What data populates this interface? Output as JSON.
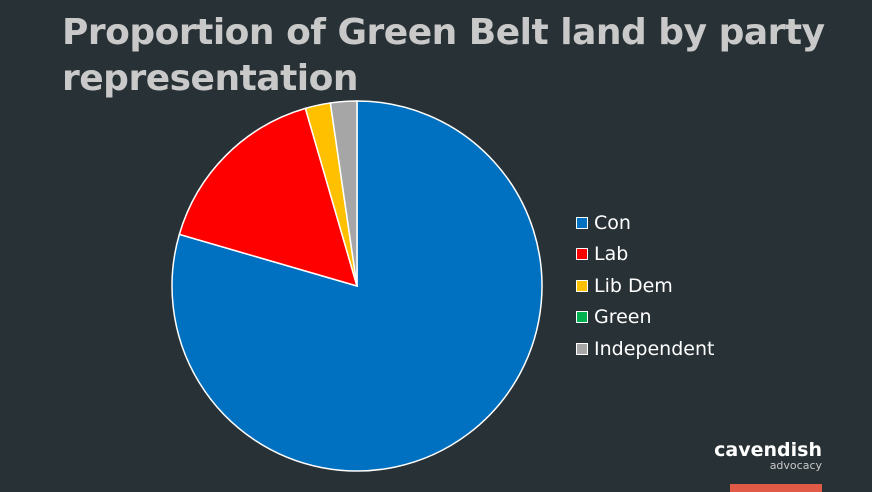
{
  "chart_data": {
    "type": "pie",
    "title": "Proportion of Green Belt land by party representation",
    "slices": [
      {
        "name": "Con",
        "value": 79.5,
        "color": "#0070c0"
      },
      {
        "name": "Lab",
        "value": 16.0,
        "color": "#ff0000"
      },
      {
        "name": "Lib Dem",
        "value": 2.2,
        "color": "#ffc000"
      },
      {
        "name": "Green",
        "value": 0.0,
        "color": "#00b050"
      },
      {
        "name": "Independent",
        "value": 2.3,
        "color": "#a6a6a6"
      }
    ],
    "legend_position": "right"
  },
  "brand": {
    "name": "cavendish",
    "sub": "advocacy",
    "accent_color": "#e05a47"
  }
}
